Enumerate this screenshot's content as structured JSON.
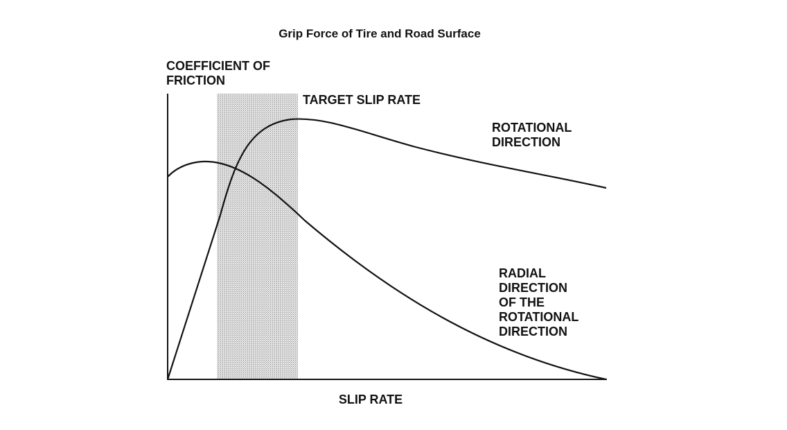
{
  "title": "Grip Force of Tire and Road Surface",
  "y_axis_label": [
    "COEFFICIENT OF",
    "FRICTION"
  ],
  "x_axis_label": "SLIP RATE",
  "band_label": "TARGET SLIP RATE",
  "curves": [
    {
      "label": [
        "ROTATIONAL",
        "DIRECTION"
      ]
    },
    {
      "label": [
        "RADIAL",
        "DIRECTION",
        "OF THE",
        "ROTATIONAL",
        "DIRECTION"
      ]
    }
  ]
}
